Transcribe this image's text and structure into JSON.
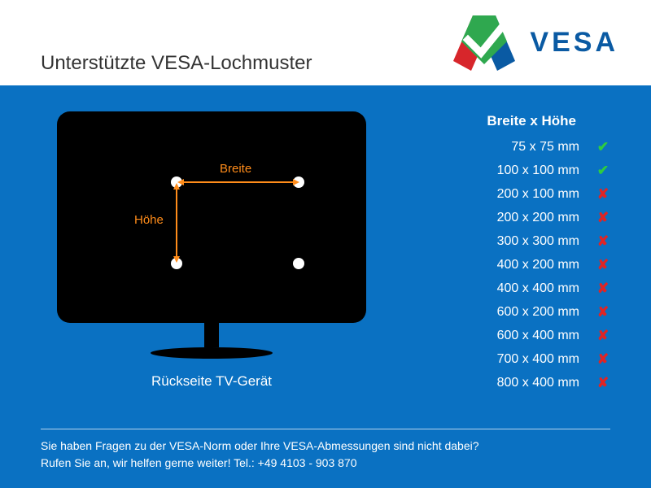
{
  "colors": {
    "main_bg": "#0a71c2",
    "accent_orange": "#ff8c1a",
    "logo_blue": "#0a5aa3",
    "ok_green": "#2ecc40",
    "no_red": "#e02424"
  },
  "header": {
    "title": "Unterstützte VESA-Lochmuster",
    "brand": "VESA"
  },
  "diagram": {
    "width_label": "Breite",
    "height_label": "Höhe",
    "caption": "Rückseite TV-Gerät"
  },
  "table": {
    "header": "Breite x Höhe",
    "rows": [
      {
        "label": "75 x 75 mm",
        "supported": true
      },
      {
        "label": "100 x 100 mm",
        "supported": true
      },
      {
        "label": "200 x 100 mm",
        "supported": false
      },
      {
        "label": "200 x 200 mm",
        "supported": false
      },
      {
        "label": "300 x 300 mm",
        "supported": false
      },
      {
        "label": "400 x 200 mm",
        "supported": false
      },
      {
        "label": "400 x 400 mm",
        "supported": false
      },
      {
        "label": "600 x 200 mm",
        "supported": false
      },
      {
        "label": "600 x 400 mm",
        "supported": false
      },
      {
        "label": "700 x 400 mm",
        "supported": false
      },
      {
        "label": "800 x 400 mm",
        "supported": false
      }
    ]
  },
  "footer": {
    "line1": "Sie haben Fragen zu der VESA-Norm oder Ihre VESA-Abmessungen sind nicht dabei?",
    "line2": "Rufen Sie an, wir helfen gerne weiter! Tel.: +49 4103 - 903 870"
  },
  "glyphs": {
    "ok": "✔",
    "no": "✘"
  }
}
